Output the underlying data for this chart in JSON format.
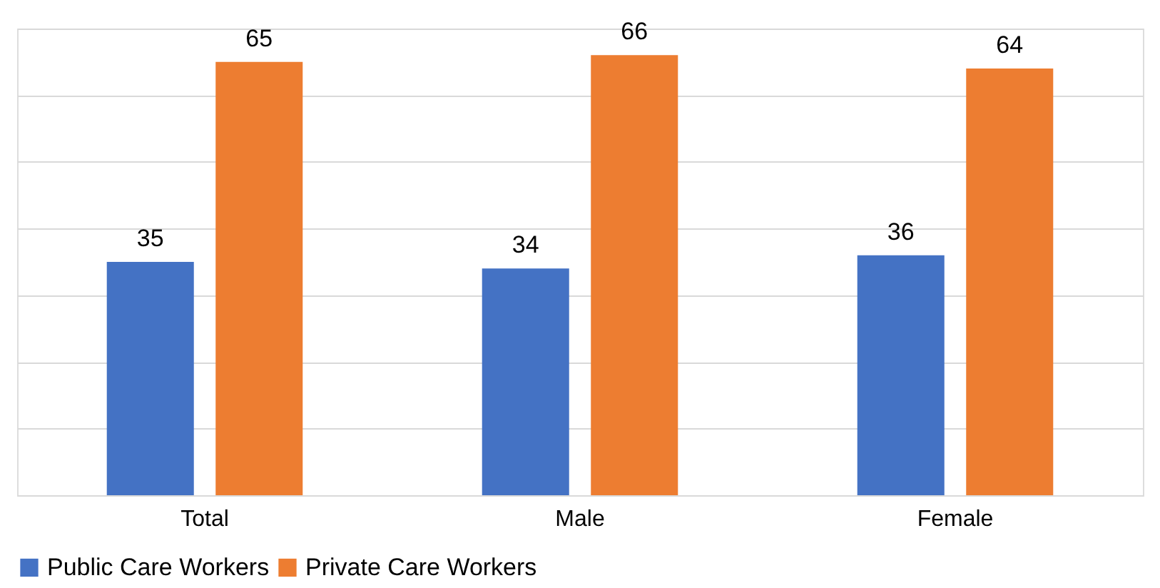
{
  "chart_data": {
    "type": "bar",
    "categories": [
      "Total",
      "Male",
      "Female"
    ],
    "series": [
      {
        "name": "Public Care Workers",
        "color": "#4472c4",
        "values": [
          35,
          34,
          36
        ]
      },
      {
        "name": "Private Care Workers",
        "color": "#ed7d31",
        "values": [
          65,
          66,
          64
        ]
      }
    ],
    "ylim": [
      0,
      70
    ],
    "yticks": [
      {
        "value": 0,
        "label": null
      },
      {
        "value": 10,
        "label": null
      },
      {
        "value": 20,
        "label": null
      },
      {
        "value": 30,
        "label": null
      },
      {
        "value": 40,
        "label": null
      },
      {
        "value": 50,
        "label": null
      },
      {
        "value": 60,
        "label": null
      },
      {
        "value": 70,
        "label": null
      }
    ],
    "tick_labels": "x",
    "grid": "y",
    "legend": "bottom",
    "data_labels": true
  }
}
